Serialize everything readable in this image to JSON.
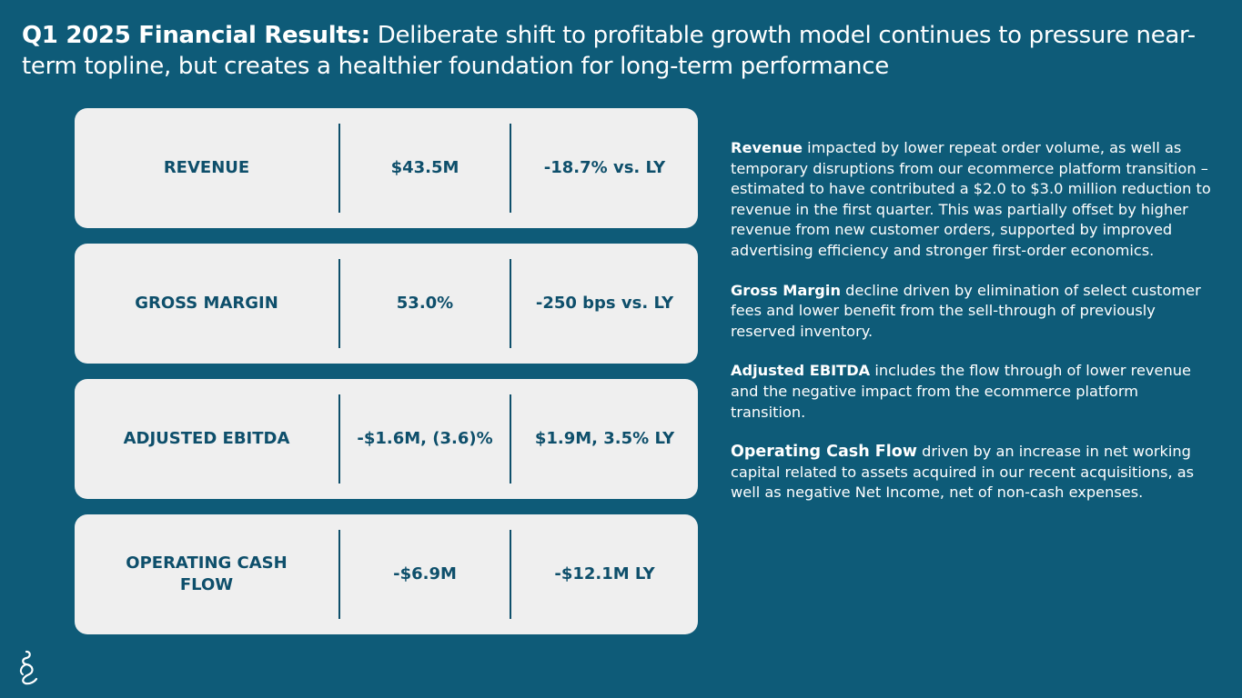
{
  "header": {
    "title_bold": "Q1 2025 Financial Results:",
    "title_rest": " Deliberate shift to profitable growth model continues to pressure near-term topline, but creates a healthier foundation for long-term performance"
  },
  "metrics": [
    {
      "label": "REVENUE",
      "value": "$43.5M",
      "comparison": "-18.7% vs. LY"
    },
    {
      "label": "GROSS MARGIN",
      "value": "53.0%",
      "comparison": "-250 bps vs. LY"
    },
    {
      "label": "ADJUSTED EBITDA",
      "value": "-$1.6M, (3.6)%",
      "comparison": "$1.9M, 3.5% LY"
    },
    {
      "label": "OPERATING CASH FLOW",
      "value": "-$6.9M",
      "comparison": "-$12.1M LY"
    }
  ],
  "notes": [
    {
      "lead": "Revenue",
      "text": " impacted by lower repeat order volume, as well as temporary disruptions from our ecommerce platform transition – estimated to have contributed a $2.0 to $3.0 million reduction to revenue in the first quarter. This was partially offset by higher revenue from new customer orders, supported by improved advertising efficiency and stronger first-order economics."
    },
    {
      "lead": "Gross Margin",
      "text": " decline driven by elimination of select customer fees and lower benefit from the sell-through of previously reserved inventory."
    },
    {
      "lead": "Adjusted EBITDA",
      "text": " includes the flow through of lower revenue and the negative impact from the ecommerce platform transition."
    },
    {
      "lead": "Operating Cash Flow",
      "text": " driven by an increase in net working capital related to assets acquired in our recent acquisitions, as well as negative Net Income, net of non-cash expenses."
    }
  ],
  "colors": {
    "background": "#0e5b78",
    "card": "#efefef",
    "card_text": "#0e4f6b"
  }
}
